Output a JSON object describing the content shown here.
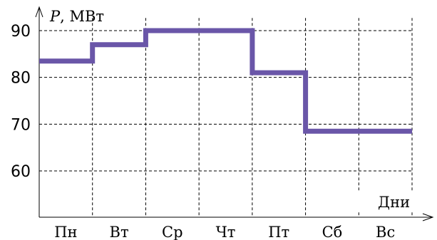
{
  "chart_data": {
    "type": "line",
    "step": true,
    "categories": [
      "Пн",
      "Вт",
      "Ср",
      "Чт",
      "Пт",
      "Сб",
      "Вс"
    ],
    "values": [
      83.5,
      87,
      90,
      90,
      81,
      68.5,
      68.5
    ],
    "ylabel_symbol": "P",
    "ylabel_unit": ", МВт",
    "xlabel": "Дни",
    "yticks": [
      60,
      70,
      80,
      90
    ],
    "ylim": [
      50,
      93
    ],
    "grid": true,
    "series_color": "#6a56a8"
  }
}
